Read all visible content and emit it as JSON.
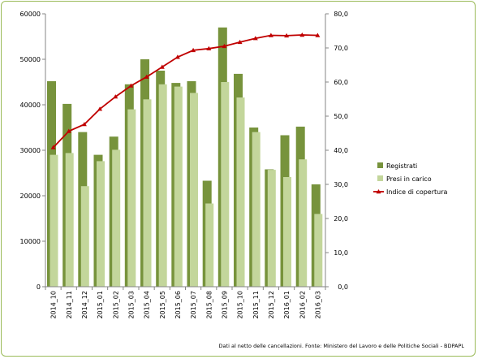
{
  "chart_data": {
    "type": "bar",
    "categories": [
      "2014_10",
      "2014_11",
      "2014_12",
      "2015_01",
      "2015_02",
      "2015_03",
      "2015_04",
      "2015_05",
      "2015_06",
      "2015_07",
      "2015_08",
      "2015_09",
      "2015_10",
      "2015_11",
      "2015_12",
      "2016_01",
      "2016_02",
      "2016_03"
    ],
    "series": [
      {
        "name": "Registrati",
        "axis": "left",
        "kind": "bar",
        "color": "#77933c",
        "values": [
          45200,
          40200,
          34000,
          29000,
          33000,
          44500,
          50000,
          47500,
          44800,
          45200,
          23300,
          57000,
          46800,
          35000,
          25800,
          33300,
          35200,
          22500
        ]
      },
      {
        "name": "Presi in carico",
        "axis": "left",
        "kind": "bar",
        "color": "#c3d69b",
        "values": [
          29000,
          29400,
          22100,
          27600,
          30100,
          39000,
          41200,
          44500,
          44000,
          42600,
          18300,
          45000,
          41600,
          34000,
          25700,
          24100,
          28000,
          16000
        ]
      },
      {
        "name": "Indice di copertura",
        "axis": "right",
        "kind": "line",
        "color": "#c00000",
        "values": [
          40.8,
          45.6,
          47.6,
          52.1,
          55.7,
          58.9,
          61.5,
          64.4,
          67.3,
          69.3,
          69.8,
          70.5,
          71.7,
          72.8,
          73.7,
          73.6,
          73.8,
          73.7
        ]
      }
    ],
    "y_left": {
      "min": 0,
      "max": 60000,
      "step": 10000,
      "tick_labels": [
        "0",
        "10000",
        "20000",
        "30000",
        "40000",
        "50000",
        "60000"
      ]
    },
    "y_right": {
      "min": 0,
      "max": 80,
      "step": 10,
      "tick_labels": [
        "0,0",
        "10,0",
        "20,0",
        "30,0",
        "40,0",
        "50,0",
        "60,0",
        "70,0",
        "80,0"
      ]
    },
    "legend_position": "right",
    "grid": false,
    "title": "",
    "xlabel": "",
    "ylabel": ""
  },
  "footer": {
    "source_note": "Dati al netto delle cancellazioni. Fonte: Ministero del Lavoro e delle Politiche Sociali - BDPAPL"
  }
}
